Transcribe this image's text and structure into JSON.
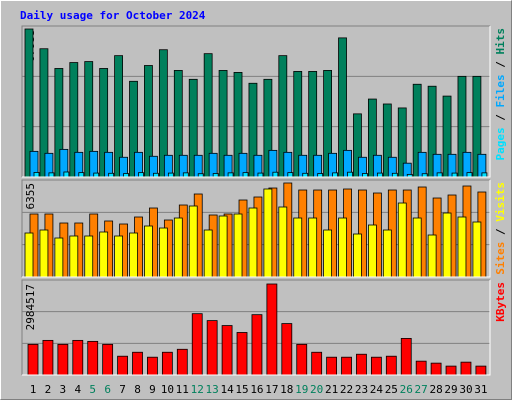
{
  "chart_data": {
    "type": "bar",
    "title": "Daily usage for October 2024",
    "categories": [
      "1",
      "2",
      "3",
      "4",
      "5",
      "6",
      "7",
      "8",
      "9",
      "10",
      "11",
      "12",
      "13",
      "14",
      "15",
      "16",
      "17",
      "18",
      "19",
      "20",
      "21",
      "22",
      "23",
      "24",
      "25",
      "26",
      "27",
      "28",
      "29",
      "30",
      "31"
    ],
    "label_color": "#000000",
    "weekend_color": "#00805c",
    "weekend": [
      4,
      5,
      11,
      12,
      18,
      19,
      25,
      26
    ],
    "legend_separator": "/",
    "grid": true,
    "panels": [
      {
        "ylim": [
          0,
          67935
        ],
        "yticks": [
          67935
        ],
        "series": [
          {
            "name": "Hits",
            "color": "#00805c",
            "values": [
              67935,
              58877,
              49819,
              52536,
              52990,
              49819,
              55707,
              43931,
              51178,
              58424,
              48913,
              44837,
              56613,
              48913,
              48007,
              43026,
              44837,
              55707,
              48460,
              48460,
              48913,
              63857,
              28986,
              35779,
              33515,
              31703,
              42573,
              41667,
              37138,
              46196,
              46196
            ]
          },
          {
            "name": "Files",
            "color": "#00a8ff",
            "values": [
              11775,
              10869,
              12681,
              11322,
              11775,
              11322,
              9058,
              11322,
              9511,
              9964,
              9964,
              9964,
              10869,
              9964,
              10869,
              9964,
              12228,
              11322,
              9964,
              9964,
              10869,
              12228,
              9058,
              9964,
              9058,
              6341,
              11322,
              10416,
              10416,
              11322,
              10416
            ]
          },
          {
            "name": "Pages",
            "color": "#00e0ff",
            "values": [
              2100,
              1900,
              2300,
              2000,
              1800,
              1700,
              1600,
              2000,
              1700,
              1800,
              1900,
              1500,
              1600,
              1900,
              2000,
              1800,
              2200,
              2000,
              1700,
              1600,
              1900,
              2200,
              1600,
              1800,
              1700,
              1200,
              1500,
              1900,
              1800,
              2000,
              1900
            ]
          }
        ]
      },
      {
        "ylim": [
          0,
          6355
        ],
        "yticks": [
          6355
        ],
        "series": [
          {
            "name": "Visits",
            "color": "#ffff00",
            "values": [
              2974,
              3177,
              2636,
              2772,
              2772,
              3042,
              2772,
              2974,
              3448,
              3312,
              3988,
              4800,
              3177,
              4124,
              4259,
              4664,
              5949,
              4732,
              3988,
              3988,
              3177,
              3988,
              2907,
              3515,
              3177,
              5002,
              3988,
              2839,
              4326,
              4056,
              3718
            ]
          },
          {
            "name": "Sites",
            "color": "#ff8000",
            "values": [
              4259,
              4259,
              3650,
              3650,
              4259,
              3786,
              3583,
              4056,
              4664,
              3853,
              4867,
              5611,
              4191,
              4259,
              5205,
              5408,
              6016,
              6355,
              5881,
              5881,
              5881,
              5949,
              5881,
              5678,
              5881,
              5881,
              6084,
              5340,
              5543,
              6152,
              5746
            ]
          }
        ]
      },
      {
        "ylim": [
          0,
          2984517
        ],
        "yticks": [
          2984517
        ],
        "series": [
          {
            "name": "KBytes",
            "color": "#ff0000",
            "values": [
              1005640,
              1135400,
              1005640,
              1135400,
              1102960,
              1005640,
              616360,
              746120,
              583920,
              746120,
              843440,
              2011280,
              1784200,
              1622000,
              1394920,
              1978840,
              2984517,
              1686880,
              1005640,
              746120,
              583920,
              583920,
              681240,
              583920,
              616360,
              1200280,
              454160,
              389280,
              291960,
              421720,
              291960
            ]
          }
        ]
      }
    ]
  }
}
